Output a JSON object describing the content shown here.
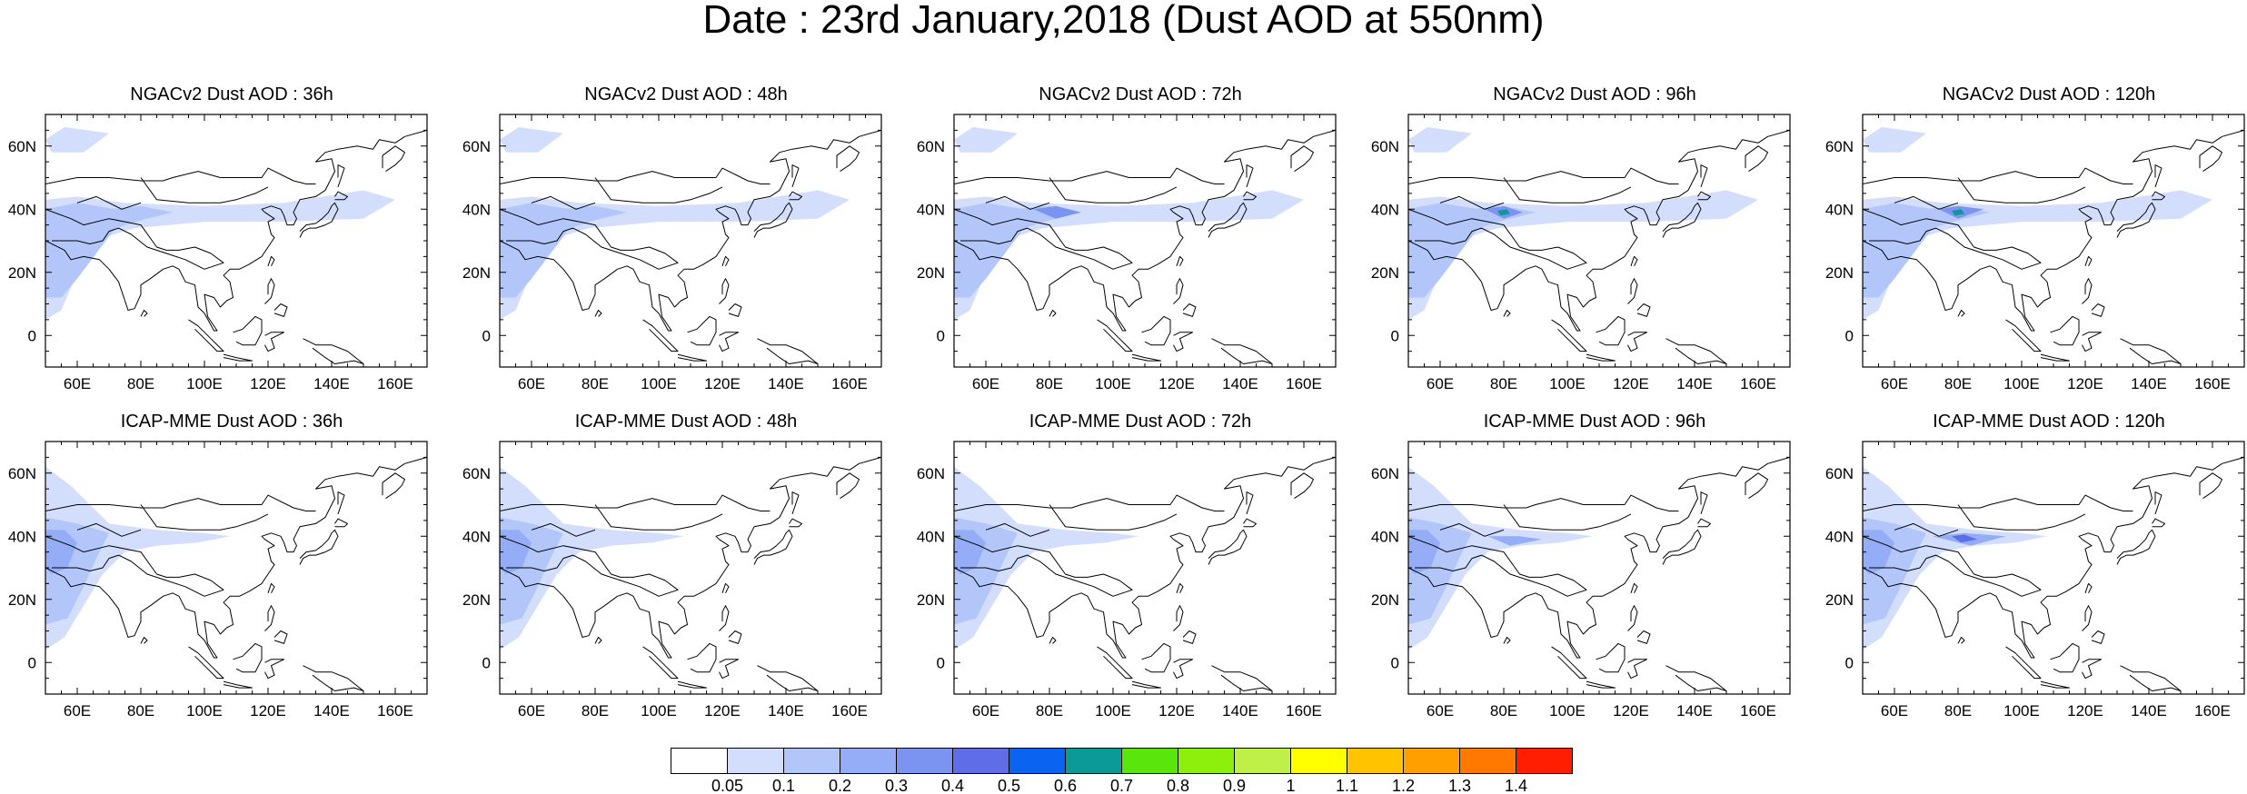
{
  "title": "Date : 23rd January,2018 (Dust AOD at 550nm)",
  "panels": [
    {
      "title": "NGACv2 Dust AOD : 36h",
      "model": "NGACv2",
      "lead": "36h"
    },
    {
      "title": "NGACv2 Dust AOD : 48h",
      "model": "NGACv2",
      "lead": "48h"
    },
    {
      "title": "NGACv2 Dust AOD : 72h",
      "model": "NGACv2",
      "lead": "72h"
    },
    {
      "title": "NGACv2 Dust AOD : 96h",
      "model": "NGACv2",
      "lead": "96h"
    },
    {
      "title": "NGACv2 Dust AOD : 120h",
      "model": "NGACv2",
      "lead": "120h"
    },
    {
      "title": "ICAP-MME Dust AOD : 36h",
      "model": "ICAP-MME",
      "lead": "36h"
    },
    {
      "title": "ICAP-MME Dust AOD : 48h",
      "model": "ICAP-MME",
      "lead": "48h"
    },
    {
      "title": "ICAP-MME Dust AOD : 72h",
      "model": "ICAP-MME",
      "lead": "72h"
    },
    {
      "title": "ICAP-MME Dust AOD : 96h",
      "model": "ICAP-MME",
      "lead": "96h"
    },
    {
      "title": "ICAP-MME Dust AOD : 120h",
      "model": "ICAP-MME",
      "lead": "120h"
    }
  ],
  "map": {
    "lon_range": [
      50,
      170
    ],
    "lat_range": [
      -10,
      70
    ],
    "lon_ticks": [
      "60E",
      "80E",
      "100E",
      "120E",
      "140E",
      "160E"
    ],
    "lon_tick_values": [
      60,
      80,
      100,
      120,
      140,
      160
    ],
    "lat_ticks": [
      "0",
      "20N",
      "40N",
      "60N"
    ],
    "lat_tick_values": [
      0,
      20,
      40,
      60
    ]
  },
  "colorbar": {
    "labels": [
      "0.05",
      "0.1",
      "0.2",
      "0.3",
      "0.4",
      "0.5",
      "0.6",
      "0.7",
      "0.8",
      "0.9",
      "1",
      "1.1",
      "1.2",
      "1.3",
      "1.4"
    ],
    "colors": [
      "#ffffff",
      "#d2defc",
      "#b3c6fa",
      "#95adf7",
      "#7c94f1",
      "#5f6ee6",
      "#0a64f0",
      "#0c9a96",
      "#5ae60c",
      "#8cf00c",
      "#bef048",
      "#ffff00",
      "#ffc300",
      "#ff9f00",
      "#ff7800",
      "#ff1e00"
    ]
  }
}
